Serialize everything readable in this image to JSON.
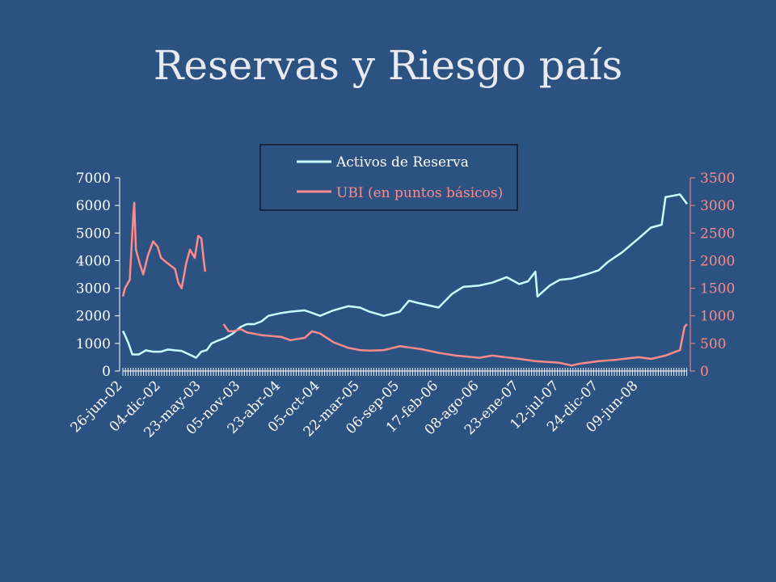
{
  "slide": {
    "title": "Reservas y Riesgo país"
  },
  "colors": {
    "background": "#2C5282",
    "reserves": "#C8FFFF",
    "ubi": "#FF8A8A",
    "axis_left": "#FFFFFF",
    "axis_right": "#FF8A8A",
    "legend_border": "#000000"
  },
  "chart_data": {
    "type": "line",
    "title": "",
    "legend_position": "top-center",
    "grid": false,
    "x_tick_labels": [
      "26-jun-02",
      "04-dic-02",
      "23-may-03",
      "05-nov-03",
      "23-abr-04",
      "05-oct-04",
      "22-mar-05",
      "06-sep-05",
      "17-feb-06",
      "08-ago-06",
      "23-ene-07",
      "12-jul-07",
      "24-dic-07",
      "09-jun-08"
    ],
    "x_range": [
      "26-jun-02",
      "31-dic-08"
    ],
    "y_left": {
      "range": [
        0,
        7000
      ],
      "ticks": [
        "0",
        "1000",
        "2000",
        "3000",
        "4000",
        "5000",
        "6000",
        "7000"
      ]
    },
    "y_right": {
      "range": [
        0,
        3500
      ],
      "ticks": [
        "0",
        "500",
        "1000",
        "1500",
        "2000",
        "2500",
        "3000",
        "3500"
      ]
    },
    "series": [
      {
        "name": "Activos de Reserva",
        "axis": "left",
        "color": "#C8FFFF",
        "points": [
          [
            "26-jun-02",
            1450
          ],
          [
            "05-jul-02",
            1300
          ],
          [
            "20-jul-02",
            1000
          ],
          [
            "05-ago-02",
            600
          ],
          [
            "01-sep-02",
            600
          ],
          [
            "01-oct-02",
            750
          ],
          [
            "01-nov-02",
            700
          ],
          [
            "04-dic-02",
            700
          ],
          [
            "01-ene-03",
            780
          ],
          [
            "01-feb-03",
            750
          ],
          [
            "01-mar-03",
            730
          ],
          [
            "15-abr-03",
            550
          ],
          [
            "01-may-03",
            480
          ],
          [
            "23-may-03",
            700
          ],
          [
            "15-jun-03",
            760
          ],
          [
            "05-jul-03",
            1000
          ],
          [
            "01-ago-03",
            1100
          ],
          [
            "01-sep-03",
            1200
          ],
          [
            "01-oct-03",
            1350
          ],
          [
            "05-nov-03",
            1600
          ],
          [
            "01-dic-03",
            1700
          ],
          [
            "01-ene-04",
            1700
          ],
          [
            "01-feb-04",
            1800
          ],
          [
            "01-mar-04",
            2000
          ],
          [
            "23-abr-04",
            2100
          ],
          [
            "01-jun-04",
            2150
          ],
          [
            "01-ago-04",
            2200
          ],
          [
            "05-oct-04",
            2000
          ],
          [
            "01-dic-04",
            2200
          ],
          [
            "01-feb-05",
            2350
          ],
          [
            "22-mar-05",
            2300
          ],
          [
            "01-may-05",
            2150
          ],
          [
            "01-jul-05",
            2000
          ],
          [
            "06-sep-05",
            2150
          ],
          [
            "15-oct-05",
            2550
          ],
          [
            "01-dic-05",
            2450
          ],
          [
            "17-feb-06",
            2300
          ],
          [
            "15-abr-06",
            2800
          ],
          [
            "01-jun-06",
            3050
          ],
          [
            "08-ago-06",
            3100
          ],
          [
            "01-oct-06",
            3200
          ],
          [
            "01-dic-06",
            3400
          ],
          [
            "23-ene-07",
            3150
          ],
          [
            "01-mar-07",
            3250
          ],
          [
            "01-abr-07",
            3600
          ],
          [
            "10-abr-07",
            2700
          ],
          [
            "01-jun-07",
            3100
          ],
          [
            "12-jul-07",
            3300
          ],
          [
            "01-sep-07",
            3350
          ],
          [
            "01-nov-07",
            3500
          ],
          [
            "24-dic-07",
            3650
          ],
          [
            "01-feb-08",
            3950
          ],
          [
            "01-abr-08",
            4300
          ],
          [
            "09-jun-08",
            4800
          ],
          [
            "01-ago-08",
            5200
          ],
          [
            "15-sep-08",
            5300
          ],
          [
            "01-oct-08",
            6300
          ],
          [
            "01-nov-08",
            6350
          ],
          [
            "01-dic-08",
            6400
          ],
          [
            "31-dic-08",
            6050
          ]
        ]
      },
      {
        "name": "UBI (en puntos básicos)",
        "axis": "right",
        "color": "#FF8A8A",
        "points": [
          [
            "26-jun-02",
            1350
          ],
          [
            "05-jul-02",
            1500
          ],
          [
            "25-jul-02",
            1650
          ],
          [
            "10-ago-02",
            2900
          ],
          [
            "13-ago-02",
            3050
          ],
          [
            "20-ago-02",
            2200
          ],
          [
            "05-sep-02",
            1950
          ],
          [
            "20-sep-02",
            1750
          ],
          [
            "10-oct-02",
            2100
          ],
          [
            "01-nov-02",
            2350
          ],
          [
            "20-nov-02",
            2250
          ],
          [
            "04-dic-02",
            2050
          ],
          [
            "01-ene-03",
            1950
          ],
          [
            "01-feb-03",
            1850
          ],
          [
            "15-feb-03",
            1600
          ],
          [
            "01-mar-03",
            1500
          ],
          [
            "20-mar-03",
            1950
          ],
          [
            "05-abr-03",
            2200
          ],
          [
            "25-abr-03",
            2050
          ],
          [
            "10-may-03",
            2450
          ],
          [
            "23-may-03",
            2400
          ],
          [
            "01-jun-03",
            2050
          ],
          [
            "08-jun-03",
            1800
          ],
          null,
          [
            "25-ago-03",
            850
          ],
          [
            "15-sep-03",
            720
          ],
          [
            "05-oct-03",
            720
          ],
          [
            "05-nov-03",
            760
          ],
          [
            "01-dic-03",
            700
          ],
          [
            "01-feb-04",
            650
          ],
          [
            "23-abr-04",
            620
          ],
          [
            "01-jun-04",
            560
          ],
          [
            "01-ago-04",
            600
          ],
          [
            "01-sep-04",
            720
          ],
          [
            "05-oct-04",
            680
          ],
          [
            "01-dic-04",
            520
          ],
          [
            "01-feb-05",
            420
          ],
          [
            "22-mar-05",
            380
          ],
          [
            "01-may-05",
            370
          ],
          [
            "01-jul-05",
            380
          ],
          [
            "06-sep-05",
            450
          ],
          [
            "01-dic-05",
            400
          ],
          [
            "17-feb-06",
            330
          ],
          [
            "01-may-06",
            280
          ],
          [
            "08-ago-06",
            240
          ],
          [
            "01-oct-06",
            280
          ],
          [
            "23-ene-07",
            220
          ],
          [
            "01-abr-07",
            180
          ],
          [
            "12-jul-07",
            150
          ],
          [
            "01-sep-07",
            100
          ],
          [
            "01-oct-07",
            130
          ],
          [
            "24-dic-07",
            180
          ],
          [
            "01-mar-08",
            200
          ],
          [
            "09-jun-08",
            250
          ],
          [
            "01-ago-08",
            220
          ],
          [
            "01-oct-08",
            280
          ],
          [
            "01-dic-08",
            380
          ],
          [
            "20-dic-08",
            800
          ],
          [
            "31-dic-08",
            850
          ]
        ]
      }
    ]
  }
}
